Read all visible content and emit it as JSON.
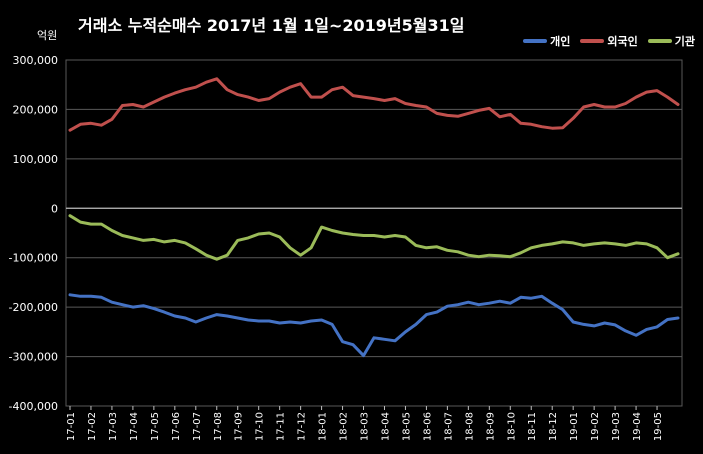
{
  "title": "거래소 누적순매수 2017년 1월 1일~2019년5월31일",
  "unit_label": "억원",
  "colors": {
    "background": "#000000",
    "grid": "#595959",
    "text": "#ffffff"
  },
  "chart_data": {
    "type": "line",
    "title": "거래소 누적순매수 2017년 1월 1일~2019년5월31일",
    "ylabel": "억원",
    "ylim": [
      -400000,
      300000
    ],
    "y_ticks": [
      "300,000",
      "200,000",
      "100,000",
      "0",
      "-100,000",
      "-200,000",
      "-300,000",
      "-400,000"
    ],
    "y_tick_values": [
      300000,
      200000,
      100000,
      0,
      -100000,
      -200000,
      -300000,
      -400000
    ],
    "x_ticks": [
      "17-01",
      "17-02",
      "17-03",
      "17-04",
      "17-05",
      "17-06",
      "17-07",
      "17-08",
      "17-09",
      "17-10",
      "17-11",
      "17-12",
      "18-01",
      "18-02",
      "18-03",
      "18-04",
      "18-05",
      "18-06",
      "18-07",
      "18-08",
      "18-09",
      "18-10",
      "18-11",
      "18-12",
      "19-01",
      "19-02",
      "19-03",
      "19-04",
      "19-05"
    ],
    "grid": true,
    "legend_position": "top-right",
    "x_month_index": [
      0,
      0.5,
      1,
      1.5,
      2,
      2.5,
      3,
      3.5,
      4,
      4.5,
      5,
      5.5,
      6,
      6.5,
      7,
      7.5,
      8,
      8.5,
      9,
      9.5,
      10,
      10.5,
      11,
      11.5,
      12,
      12.5,
      13,
      13.5,
      14,
      14.5,
      15,
      15.5,
      16,
      16.5,
      17,
      17.5,
      18,
      18.5,
      19,
      19.5,
      20,
      20.5,
      21,
      21.5,
      22,
      22.5,
      23,
      23.5,
      24,
      24.5,
      25,
      25.5,
      26,
      26.5,
      27,
      27.5,
      28,
      28.5,
      29
    ],
    "series": [
      {
        "name": "개인",
        "color": "#4472c4",
        "values": [
          -175000,
          -178000,
          -178000,
          -180000,
          -190000,
          -195000,
          -200000,
          -197000,
          -203000,
          -210000,
          -218000,
          -222000,
          -230000,
          -222000,
          -215000,
          -218000,
          -222000,
          -226000,
          -228000,
          -228000,
          -232000,
          -230000,
          -232000,
          -228000,
          -226000,
          -235000,
          -270000,
          -276000,
          -298000,
          -262000,
          -265000,
          -268000,
          -250000,
          -235000,
          -215000,
          -210000,
          -198000,
          -195000,
          -190000,
          -195000,
          -192000,
          -188000,
          -192000,
          -180000,
          -182000,
          -178000,
          -192000,
          -205000,
          -230000,
          -235000,
          -238000,
          -232000,
          -236000,
          -248000,
          -257000,
          -245000,
          -240000,
          -225000,
          -222000
        ]
      },
      {
        "name": "외국인",
        "color": "#c0504d",
        "values": [
          158000,
          170000,
          172000,
          168000,
          180000,
          208000,
          210000,
          205000,
          215000,
          225000,
          233000,
          240000,
          245000,
          255000,
          262000,
          240000,
          230000,
          225000,
          218000,
          222000,
          235000,
          245000,
          252000,
          225000,
          225000,
          240000,
          245000,
          228000,
          225000,
          222000,
          218000,
          222000,
          212000,
          208000,
          205000,
          192000,
          188000,
          186000,
          192000,
          198000,
          202000,
          185000,
          190000,
          172000,
          170000,
          165000,
          162000,
          163000,
          182000,
          205000,
          210000,
          205000,
          205000,
          212000,
          225000,
          235000,
          238000,
          225000,
          210000
        ]
      },
      {
        "name": "기관",
        "color": "#9bbb59",
        "values": [
          -15000,
          -28000,
          -32000,
          -32000,
          -45000,
          -55000,
          -60000,
          -65000,
          -63000,
          -68000,
          -65000,
          -70000,
          -82000,
          -95000,
          -103000,
          -95000,
          -65000,
          -60000,
          -52000,
          -50000,
          -58000,
          -80000,
          -95000,
          -80000,
          -38000,
          -45000,
          -50000,
          -53000,
          -55000,
          -55000,
          -58000,
          -55000,
          -58000,
          -75000,
          -80000,
          -78000,
          -85000,
          -88000,
          -95000,
          -98000,
          -95000,
          -96000,
          -98000,
          -90000,
          -80000,
          -75000,
          -72000,
          -68000,
          -70000,
          -75000,
          -72000,
          -70000,
          -72000,
          -75000,
          -70000,
          -72000,
          -80000,
          -100000,
          -92000
        ]
      }
    ]
  }
}
